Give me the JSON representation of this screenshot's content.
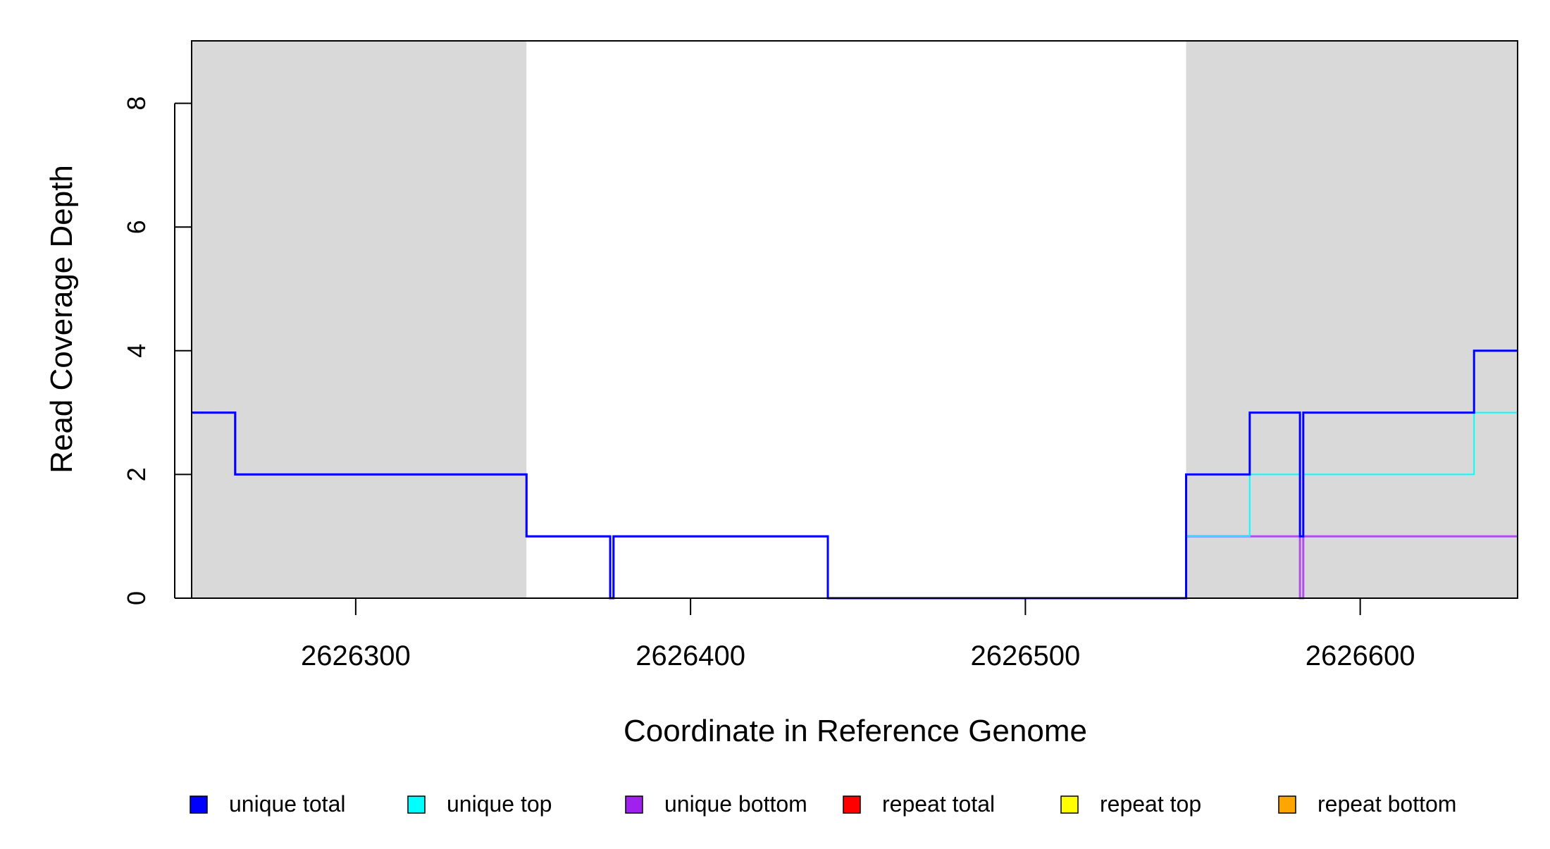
{
  "chart_data": {
    "type": "line",
    "title": "",
    "xlabel": "Coordinate in Reference Genome",
    "ylabel": "Read Coverage Depth",
    "xlim": [
      2626251,
      2626647
    ],
    "ylim": [
      0,
      9
    ],
    "x_ticks": [
      2626300,
      2626400,
      2626500,
      2626600
    ],
    "x_tick_labels": [
      "2626300",
      "2626400",
      "2626500",
      "2626600"
    ],
    "y_ticks": [
      0,
      2,
      4,
      6,
      8
    ],
    "y_tick_labels": [
      "0",
      "2",
      "4",
      "6",
      "8"
    ],
    "grid": false,
    "legend_position": "bottom",
    "shaded_regions": [
      {
        "x_start": 2626251,
        "x_end": 2626351,
        "color": "#d9d9d9"
      },
      {
        "x_start": 2626548,
        "x_end": 2626647,
        "color": "#d9d9d9"
      }
    ],
    "series": [
      {
        "name": "unique total",
        "color": "#0000ff",
        "step_x": [
          2626251,
          2626264,
          2626351,
          2626376,
          2626377,
          2626441,
          2626548,
          2626567,
          2626582,
          2626583,
          2626634,
          2626647
        ],
        "step_y": [
          3,
          2,
          1,
          0,
          1,
          0,
          2,
          3,
          1,
          3,
          4,
          4
        ]
      },
      {
        "name": "unique top",
        "color": "#00ffff",
        "step_x": [
          2626251,
          2626548,
          2626567,
          2626582,
          2626583,
          2626634,
          2626647
        ],
        "step_y": [
          0,
          1,
          2,
          1,
          2,
          3,
          3
        ]
      },
      {
        "name": "unique bottom",
        "color": "#a020f0",
        "step_x": [
          2626251,
          2626264,
          2626351,
          2626376,
          2626377,
          2626441,
          2626548,
          2626582,
          2626583,
          2626647
        ],
        "step_y": [
          3,
          2,
          1,
          0,
          1,
          0,
          1,
          0,
          1,
          1
        ]
      },
      {
        "name": "repeat total",
        "color": "#ff0000",
        "step_x": [
          2626251,
          2626647
        ],
        "step_y": [
          0,
          0
        ]
      },
      {
        "name": "repeat top",
        "color": "#ffff00",
        "step_x": [
          2626251,
          2626647
        ],
        "step_y": [
          0,
          0
        ]
      },
      {
        "name": "repeat bottom",
        "color": "#ffa500",
        "step_x": [
          2626251,
          2626647
        ],
        "step_y": [
          0,
          0
        ]
      }
    ]
  }
}
